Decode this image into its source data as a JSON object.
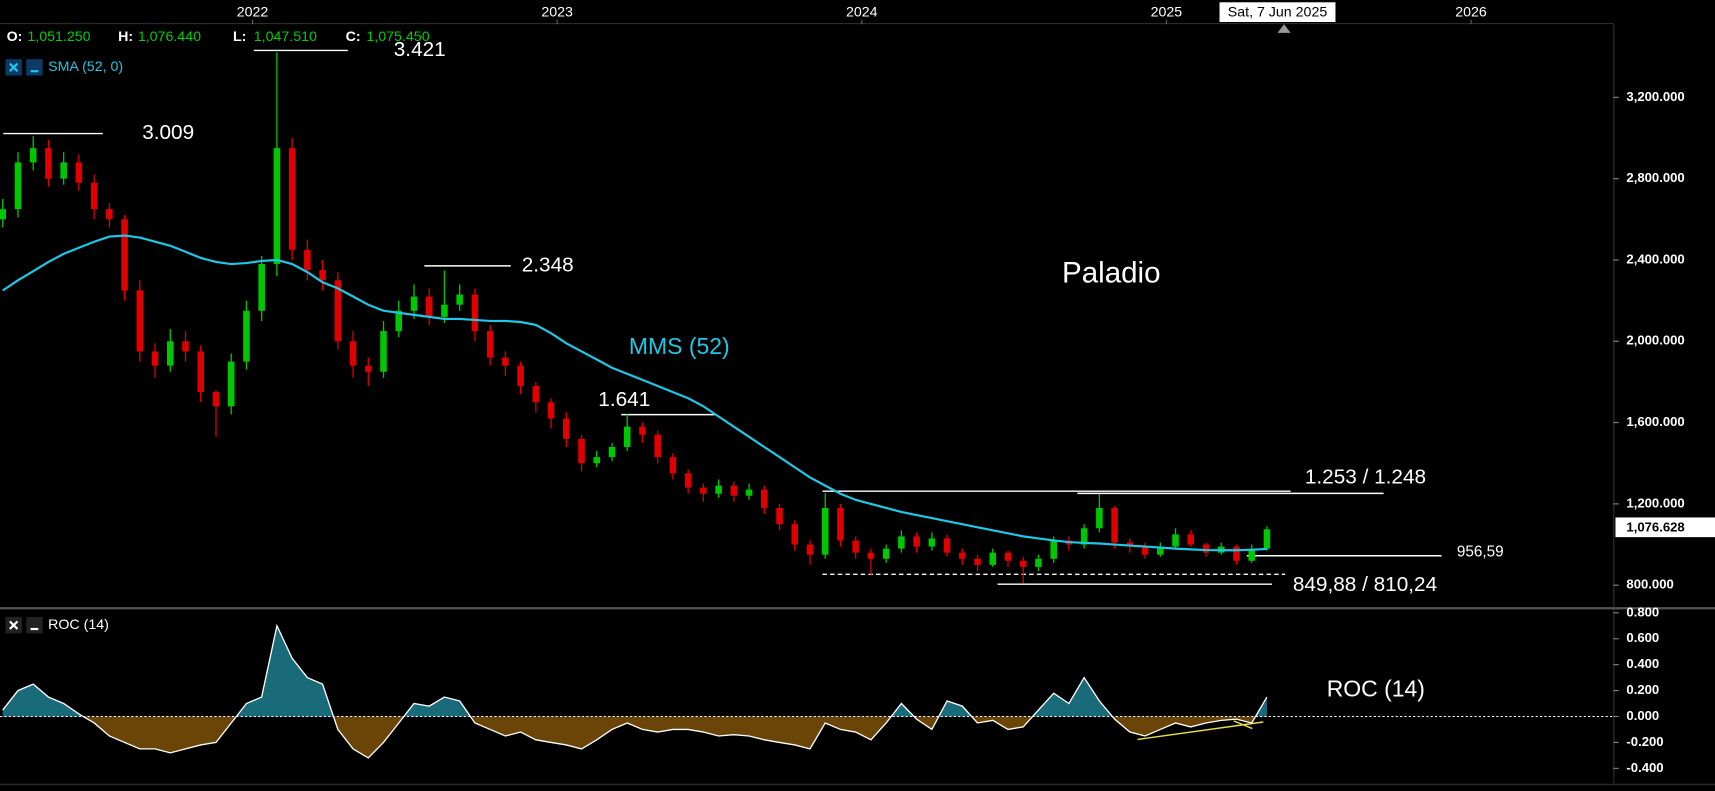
{
  "chart_data": [
    {
      "type": "candlestick",
      "header": [
        {
          "label": "O:",
          "value": "1,051.250"
        },
        {
          "label": "H:",
          "value": "1,076.440"
        },
        {
          "label": "L:",
          "value": "1,047.510"
        },
        {
          "label": "C:",
          "value": "1,075.450"
        }
      ],
      "cursor_label": "Sat, 7 Jun 2025",
      "last_price_label": "1,076.628",
      "annotations": [
        "3.421",
        "3.009",
        "2.348",
        "1.641",
        "1.253 / 1.248",
        "956,59",
        "849,88 / 810,24",
        "Paladio",
        "MMS (52)"
      ],
      "up_color": "#00c800",
      "down_color": "#e00000",
      "x": [
        2021.18,
        2021.23,
        2021.28,
        2021.33,
        2021.38,
        2021.43,
        2021.48,
        2021.53,
        2021.58,
        2021.63,
        2021.68,
        2021.73,
        2021.78,
        2021.83,
        2021.88,
        2021.93,
        2021.98,
        2022.03,
        2022.08,
        2022.13,
        2022.18,
        2022.23,
        2022.28,
        2022.33,
        2022.38,
        2022.43,
        2022.48,
        2022.53,
        2022.58,
        2022.63,
        2022.68,
        2022.73,
        2022.78,
        2022.83,
        2022.88,
        2022.93,
        2022.98,
        2023.03,
        2023.08,
        2023.13,
        2023.18,
        2023.23,
        2023.28,
        2023.33,
        2023.38,
        2023.43,
        2023.48,
        2023.53,
        2023.58,
        2023.63,
        2023.68,
        2023.73,
        2023.78,
        2023.83,
        2023.88,
        2023.93,
        2023.98,
        2024.03,
        2024.08,
        2024.13,
        2024.18,
        2024.23,
        2024.28,
        2024.33,
        2024.38,
        2024.43,
        2024.48,
        2024.53,
        2024.58,
        2024.63,
        2024.68,
        2024.73,
        2024.78,
        2024.83,
        2024.88,
        2024.93,
        2024.98,
        2025.03,
        2025.08,
        2025.13,
        2025.18,
        2025.23,
        2025.28,
        2025.33
      ],
      "open": [
        2600,
        2650,
        2880,
        2950,
        2800,
        2880,
        2780,
        2650,
        2600,
        2250,
        1950,
        1880,
        2000,
        1950,
        1750,
        1680,
        1900,
        2150,
        2380,
        2950,
        2450,
        2350,
        2300,
        2000,
        1880,
        1850,
        2050,
        2150,
        2220,
        2120,
        2180,
        2230,
        2050,
        1920,
        1880,
        1780,
        1700,
        1620,
        1520,
        1400,
        1430,
        1480,
        1580,
        1540,
        1430,
        1350,
        1280,
        1250,
        1290,
        1240,
        1270,
        1180,
        1100,
        1000,
        950,
        1180,
        1020,
        960,
        930,
        980,
        1040,
        990,
        1030,
        960,
        930,
        900,
        960,
        920,
        890,
        930,
        1020,
        1000,
        1080,
        1180,
        1010,
        990,
        950,
        990,
        1050,
        1000,
        960,
        990,
        920,
        980
      ],
      "high": [
        2700,
        2930,
        3009,
        2990,
        2930,
        2920,
        2820,
        2680,
        2620,
        2300,
        1990,
        2060,
        2050,
        1980,
        1760,
        1940,
        2200,
        2420,
        3421,
        3000,
        2500,
        2400,
        2340,
        2050,
        1920,
        2100,
        2200,
        2280,
        2260,
        2348,
        2280,
        2260,
        2080,
        1950,
        1900,
        1800,
        1720,
        1650,
        1540,
        1460,
        1500,
        1641,
        1600,
        1560,
        1450,
        1370,
        1300,
        1320,
        1310,
        1300,
        1290,
        1200,
        1120,
        1020,
        1253,
        1200,
        1040,
        980,
        1000,
        1070,
        1060,
        1060,
        1050,
        980,
        950,
        980,
        970,
        940,
        950,
        1040,
        1040,
        1100,
        1248,
        1190,
        1030,
        1010,
        1010,
        1080,
        1070,
        1010,
        1010,
        1000,
        1000,
        1090
      ],
      "low": [
        2560,
        2610,
        2840,
        2760,
        2770,
        2740,
        2600,
        2560,
        2200,
        1900,
        1820,
        1850,
        1900,
        1700,
        1530,
        1640,
        1860,
        2100,
        2320,
        2400,
        2300,
        2250,
        1960,
        1820,
        1780,
        1820,
        2020,
        2110,
        2080,
        2090,
        2150,
        2000,
        1880,
        1830,
        1740,
        1650,
        1570,
        1480,
        1360,
        1380,
        1410,
        1460,
        1500,
        1400,
        1320,
        1250,
        1210,
        1230,
        1210,
        1220,
        1150,
        1070,
        970,
        900,
        930,
        990,
        930,
        850,
        910,
        960,
        960,
        970,
        940,
        900,
        870,
        890,
        890,
        810,
        870,
        910,
        970,
        980,
        1060,
        980,
        960,
        930,
        940,
        980,
        990,
        940,
        950,
        900,
        910,
        970
      ],
      "close": [
        2650,
        2880,
        2950,
        2800,
        2880,
        2780,
        2650,
        2600,
        2250,
        1950,
        1880,
        2000,
        1950,
        1750,
        1680,
        1900,
        2150,
        2380,
        2950,
        2450,
        2350,
        2300,
        2000,
        1880,
        1850,
        2050,
        2150,
        2220,
        2120,
        2180,
        2230,
        2050,
        1920,
        1880,
        1780,
        1700,
        1620,
        1520,
        1400,
        1430,
        1480,
        1580,
        1540,
        1430,
        1350,
        1280,
        1250,
        1290,
        1240,
        1270,
        1180,
        1100,
        1000,
        950,
        1180,
        1020,
        960,
        930,
        980,
        1040,
        990,
        1030,
        960,
        930,
        900,
        960,
        920,
        890,
        930,
        1020,
        1000,
        1080,
        1180,
        1010,
        990,
        950,
        990,
        1050,
        1000,
        960,
        990,
        920,
        980,
        1075
      ],
      "overlays": [
        {
          "name": "SMA (52, 0)",
          "color": "#1ec8e6",
          "values": [
            2250,
            2300,
            2345,
            2390,
            2430,
            2460,
            2490,
            2515,
            2520,
            2510,
            2490,
            2470,
            2440,
            2410,
            2390,
            2380,
            2385,
            2395,
            2400,
            2380,
            2340,
            2290,
            2260,
            2220,
            2180,
            2150,
            2140,
            2130,
            2120,
            2110,
            2110,
            2105,
            2100,
            2100,
            2095,
            2080,
            2040,
            1990,
            1950,
            1910,
            1870,
            1840,
            1810,
            1780,
            1750,
            1720,
            1680,
            1630,
            1580,
            1530,
            1480,
            1430,
            1380,
            1330,
            1290,
            1250,
            1220,
            1200,
            1180,
            1160,
            1145,
            1130,
            1115,
            1100,
            1085,
            1070,
            1055,
            1040,
            1030,
            1020,
            1012,
            1008,
            1005,
            1000,
            995,
            990,
            985,
            980,
            976,
            973,
            972,
            972,
            974,
            978
          ]
        }
      ],
      "xlim": [
        2021.171,
        2026.467
      ],
      "xticks": [
        2022,
        2023,
        2024,
        2025,
        2026
      ],
      "ylim": [
        692,
        3560
      ],
      "yticks": [
        {
          "value": 800,
          "label": "800.000"
        },
        {
          "value": 1200,
          "label": "1,200.000"
        },
        {
          "value": 1600,
          "label": "1,600.000"
        },
        {
          "value": 2000,
          "label": "2,000.000"
        },
        {
          "value": 2400,
          "label": "2,400.000"
        },
        {
          "value": 2800,
          "label": "2,800.000"
        },
        {
          "value": 3200,
          "label": "3,200.000"
        }
      ],
      "grid": false
    },
    {
      "type": "area",
      "annotations": [
        "ROC (14)"
      ],
      "x": [
        2021.18,
        2021.23,
        2021.28,
        2021.33,
        2021.38,
        2021.43,
        2021.48,
        2021.53,
        2021.58,
        2021.63,
        2021.68,
        2021.73,
        2021.78,
        2021.83,
        2021.88,
        2021.93,
        2021.98,
        2022.03,
        2022.08,
        2022.13,
        2022.18,
        2022.23,
        2022.28,
        2022.33,
        2022.38,
        2022.43,
        2022.48,
        2022.53,
        2022.58,
        2022.63,
        2022.68,
        2022.73,
        2022.78,
        2022.83,
        2022.88,
        2022.93,
        2022.98,
        2023.03,
        2023.08,
        2023.13,
        2023.18,
        2023.23,
        2023.28,
        2023.33,
        2023.38,
        2023.43,
        2023.48,
        2023.53,
        2023.58,
        2023.63,
        2023.68,
        2023.73,
        2023.78,
        2023.83,
        2023.88,
        2023.93,
        2023.98,
        2024.03,
        2024.08,
        2024.13,
        2024.18,
        2024.23,
        2024.28,
        2024.33,
        2024.38,
        2024.43,
        2024.48,
        2024.53,
        2024.58,
        2024.63,
        2024.68,
        2024.73,
        2024.78,
        2024.83,
        2024.88,
        2024.93,
        2024.98,
        2025.03,
        2025.08,
        2025.13,
        2025.18,
        2025.23,
        2025.28,
        2025.33
      ],
      "series": [
        {
          "name": "ROC (14)",
          "color": "#ffffff",
          "pos_color": "#1a6b7a",
          "neg_color": "#6b4508",
          "values": [
            0.05,
            0.2,
            0.25,
            0.15,
            0.1,
            0.02,
            -0.05,
            -0.15,
            -0.2,
            -0.25,
            -0.25,
            -0.28,
            -0.25,
            -0.22,
            -0.2,
            -0.05,
            0.1,
            0.15,
            0.7,
            0.45,
            0.3,
            0.25,
            -0.1,
            -0.25,
            -0.32,
            -0.2,
            -0.05,
            0.1,
            0.08,
            0.15,
            0.12,
            -0.05,
            -0.1,
            -0.15,
            -0.12,
            -0.18,
            -0.2,
            -0.22,
            -0.25,
            -0.18,
            -0.1,
            -0.05,
            -0.1,
            -0.12,
            -0.1,
            -0.1,
            -0.12,
            -0.15,
            -0.14,
            -0.15,
            -0.18,
            -0.2,
            -0.22,
            -0.25,
            -0.05,
            -0.1,
            -0.12,
            -0.18,
            -0.05,
            0.1,
            -0.02,
            -0.1,
            0.12,
            0.08,
            -0.05,
            -0.03,
            -0.1,
            -0.08,
            0.05,
            0.18,
            0.1,
            0.3,
            0.12,
            -0.02,
            -0.12,
            -0.15,
            -0.1,
            -0.05,
            -0.08,
            -0.05,
            -0.03,
            -0.02,
            -0.05,
            0.15
          ]
        }
      ],
      "xlim": [
        2021.171,
        2026.467
      ],
      "ylim": [
        -0.515,
        0.827
      ],
      "yticks": [
        {
          "value": -0.4,
          "label": "-0.400"
        },
        {
          "value": -0.2,
          "label": "-0.200"
        },
        {
          "value": 0,
          "label": "0.000"
        },
        {
          "value": 0.2,
          "label": "0.200"
        },
        {
          "value": 0.4,
          "label": "0.400"
        },
        {
          "value": 0.6,
          "label": "0.600"
        },
        {
          "value": 0.8,
          "label": "0.800"
        }
      ],
      "grid": false
    }
  ]
}
